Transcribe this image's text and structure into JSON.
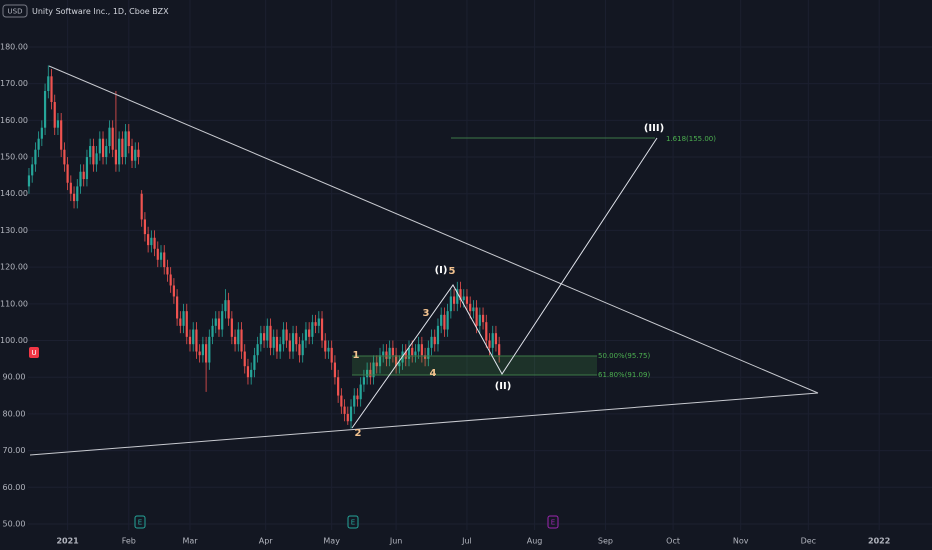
{
  "chart_data": {
    "type": "candlestick",
    "title": "Unity Software Inc., 1D, Cboe BZX",
    "currency": "USD",
    "symbol_badge": "U",
    "earnings_markers": [
      "E",
      "E",
      "E"
    ],
    "annotations": {
      "wave_I": "(I)",
      "wave_II": "(II)",
      "wave_III": "(III)",
      "sub_1": "1",
      "sub_2": "2",
      "sub_3": "3",
      "sub_4": "4",
      "sub_5": "5",
      "fib_50": "50.00%(95.75)",
      "fib_618": "61.80%(91.09)",
      "fib_1618": "1.618(155.00)"
    },
    "up_color": "#26a69a",
    "down_color": "#ef5350",
    "ylim": [
      48.36,
      192.8
    ],
    "yticks": [
      {
        "value": 50,
        "label": "50.00"
      },
      {
        "value": 60,
        "label": "60.00"
      },
      {
        "value": 70,
        "label": "70.00"
      },
      {
        "value": 80,
        "label": "80.00"
      },
      {
        "value": 90,
        "label": "90.00"
      },
      {
        "value": 100,
        "label": "100.00"
      },
      {
        "value": 110,
        "label": "110.00"
      },
      {
        "value": 120,
        "label": "120.00"
      },
      {
        "value": 130,
        "label": "130.00"
      },
      {
        "value": 140,
        "label": "140.00"
      },
      {
        "value": 150,
        "label": "150.00"
      },
      {
        "value": 160,
        "label": "160.00"
      },
      {
        "value": 170,
        "label": "170.00"
      },
      {
        "value": 180,
        "label": "180.00"
      }
    ],
    "xlim": [
      -0.3,
      280.4
    ],
    "xticks": [
      {
        "value": 12,
        "label": "2021"
      },
      {
        "value": 31,
        "label": "Feb"
      },
      {
        "value": 50,
        "label": "Mar"
      },
      {
        "value": 73.5,
        "label": "Apr"
      },
      {
        "value": 94,
        "label": "May"
      },
      {
        "value": 114,
        "label": "Jun"
      },
      {
        "value": 136,
        "label": "Jul"
      },
      {
        "value": 157,
        "label": "Aug"
      },
      {
        "value": 179,
        "label": "Sep"
      },
      {
        "value": 200,
        "label": "Oct"
      },
      {
        "value": 221,
        "label": "Nov"
      },
      {
        "value": 242,
        "label": "Dec"
      },
      {
        "value": 264,
        "label": "2022"
      }
    ],
    "candles": [
      [
        142,
        147,
        140,
        145
      ],
      [
        145,
        150,
        143,
        148
      ],
      [
        148,
        154,
        146,
        152
      ],
      [
        152,
        157,
        150,
        155
      ],
      [
        155,
        160,
        153,
        158
      ],
      [
        158,
        170,
        156,
        168
      ],
      [
        168,
        175,
        166,
        172
      ],
      [
        172,
        174,
        163,
        165
      ],
      [
        165,
        167,
        156,
        158
      ],
      [
        158,
        162,
        156,
        160
      ],
      [
        160,
        162,
        150,
        152
      ],
      [
        152,
        154,
        146,
        148
      ],
      [
        148,
        150,
        141,
        143
      ],
      [
        143,
        145,
        138,
        140
      ],
      [
        140,
        142,
        136,
        138
      ],
      [
        138,
        144,
        136,
        142
      ],
      [
        142,
        148,
        140,
        146
      ],
      [
        146,
        148,
        142,
        144
      ],
      [
        144,
        152,
        142,
        150
      ],
      [
        150,
        155,
        148,
        153
      ],
      [
        153,
        155,
        146,
        148
      ],
      [
        148,
        153,
        146,
        151
      ],
      [
        151,
        157,
        149,
        155
      ],
      [
        155,
        157,
        148,
        150
      ],
      [
        150,
        155,
        148,
        153
      ],
      [
        153,
        160,
        151,
        158
      ],
      [
        158,
        160,
        150,
        152
      ],
      [
        152,
        168,
        146,
        148
      ],
      [
        148,
        157,
        146,
        155
      ],
      [
        155,
        157,
        148,
        150
      ],
      [
        150,
        159,
        148,
        157
      ],
      [
        157,
        159,
        151,
        153
      ],
      [
        153,
        155,
        147,
        149
      ],
      [
        149,
        154,
        147,
        152
      ],
      [
        152,
        154,
        148,
        150
      ],
      [
        140,
        141,
        131,
        133
      ],
      [
        133,
        135,
        127,
        129
      ],
      [
        129,
        131,
        124,
        126
      ],
      [
        126,
        130,
        124,
        128
      ],
      [
        128,
        130,
        123,
        125
      ],
      [
        125,
        127,
        120,
        122
      ],
      [
        122,
        126,
        120,
        124
      ],
      [
        124,
        126,
        118,
        120
      ],
      [
        120,
        122,
        116,
        118
      ],
      [
        118,
        120,
        113,
        115
      ],
      [
        115,
        117,
        110,
        112
      ],
      [
        112,
        114,
        104,
        106
      ],
      [
        106,
        108,
        102,
        104
      ],
      [
        104,
        110,
        102,
        108
      ],
      [
        108,
        110,
        99,
        101
      ],
      [
        101,
        103,
        97,
        99
      ],
      [
        99,
        105,
        97,
        103
      ],
      [
        103,
        105,
        95,
        97
      ],
      [
        97,
        99,
        94,
        96
      ],
      [
        96,
        101,
        94,
        99
      ],
      [
        99,
        101,
        86,
        94
      ],
      [
        94,
        103,
        92,
        101
      ],
      [
        101,
        106,
        99,
        104
      ],
      [
        104,
        108,
        102,
        106
      ],
      [
        106,
        108,
        101,
        103
      ],
      [
        103,
        110,
        101,
        108
      ],
      [
        108,
        114,
        106,
        111
      ],
      [
        111,
        113,
        104,
        106
      ],
      [
        106,
        108,
        99,
        101
      ],
      [
        101,
        103,
        97,
        99
      ],
      [
        99,
        105,
        97,
        103
      ],
      [
        103,
        105,
        95,
        97
      ],
      [
        97,
        99,
        91,
        93
      ],
      [
        93,
        95,
        88,
        90
      ],
      [
        90,
        94,
        88,
        92
      ],
      [
        92,
        98,
        90,
        96
      ],
      [
        96,
        101,
        94,
        99
      ],
      [
        99,
        104,
        97,
        102
      ],
      [
        102,
        104,
        98,
        100
      ],
      [
        100,
        106,
        98,
        104
      ],
      [
        104,
        106,
        96,
        98
      ],
      [
        98,
        103,
        96,
        101
      ],
      [
        101,
        103,
        95,
        97
      ],
      [
        97,
        101,
        95,
        99
      ],
      [
        99,
        105,
        97,
        103
      ],
      [
        103,
        105,
        98,
        100
      ],
      [
        100,
        102,
        95,
        97
      ],
      [
        97,
        104,
        95,
        102
      ],
      [
        102,
        104,
        97,
        99
      ],
      [
        99,
        101,
        94,
        96
      ],
      [
        96,
        102,
        94,
        100
      ],
      [
        100,
        105,
        98,
        103
      ],
      [
        103,
        105,
        99,
        101
      ],
      [
        101,
        107,
        99,
        105
      ],
      [
        105,
        107,
        102,
        104
      ],
      [
        104,
        108,
        102,
        106
      ],
      [
        106,
        108,
        98,
        100
      ],
      [
        100,
        102,
        95,
        97
      ],
      [
        97,
        100,
        95,
        98
      ],
      [
        98,
        100,
        92,
        94
      ],
      [
        94,
        96,
        88,
        90
      ],
      [
        90,
        92,
        83,
        85
      ],
      [
        85,
        87,
        80,
        82
      ],
      [
        82,
        84,
        78,
        80
      ],
      [
        80,
        82,
        77,
        78
      ],
      [
        78,
        84,
        76,
        82
      ],
      [
        82,
        87,
        80,
        85
      ],
      [
        85,
        87,
        82,
        84
      ],
      [
        84,
        90,
        82,
        88
      ],
      [
        88,
        92,
        86,
        90
      ],
      [
        90,
        94,
        88,
        92
      ],
      [
        92,
        94,
        88,
        90
      ],
      [
        90,
        96,
        88,
        94
      ],
      [
        94,
        96,
        91,
        93
      ],
      [
        93,
        98,
        91,
        96
      ],
      [
        96,
        99,
        94,
        97
      ],
      [
        97,
        99,
        93,
        95
      ],
      [
        95,
        100,
        93,
        98
      ],
      [
        98,
        100,
        94,
        96
      ],
      [
        96,
        98,
        91,
        93
      ],
      [
        93,
        96,
        91,
        94
      ],
      [
        94,
        99,
        92,
        97
      ],
      [
        97,
        99,
        93,
        95
      ],
      [
        95,
        100,
        93,
        98
      ],
      [
        98,
        100,
        94,
        96
      ],
      [
        96,
        99,
        94,
        97
      ],
      [
        97,
        101,
        95,
        99
      ],
      [
        99,
        101,
        94,
        96
      ],
      [
        96,
        98,
        93,
        95
      ],
      [
        95,
        100,
        93,
        98
      ],
      [
        98,
        103,
        96,
        101
      ],
      [
        101,
        103,
        97,
        99
      ],
      [
        99,
        106,
        97,
        104
      ],
      [
        104,
        109,
        102,
        107
      ],
      [
        107,
        109,
        101,
        103
      ],
      [
        103,
        110,
        101,
        108
      ],
      [
        108,
        114,
        106,
        112
      ],
      [
        112,
        114,
        108,
        110
      ],
      [
        110,
        116,
        108,
        114
      ],
      [
        114,
        116,
        109,
        111
      ],
      [
        111,
        114,
        109,
        112
      ],
      [
        112,
        114,
        108,
        110
      ],
      [
        110,
        112,
        106,
        108
      ],
      [
        108,
        111,
        106,
        109
      ],
      [
        109,
        111,
        102,
        104
      ],
      [
        104,
        109,
        102,
        107
      ],
      [
        107,
        109,
        103,
        105
      ],
      [
        105,
        107,
        98,
        100
      ],
      [
        100,
        102,
        96,
        98
      ],
      [
        98,
        104,
        96,
        102
      ],
      [
        102,
        104,
        97,
        99
      ],
      [
        99,
        101,
        94,
        96
      ]
    ]
  }
}
